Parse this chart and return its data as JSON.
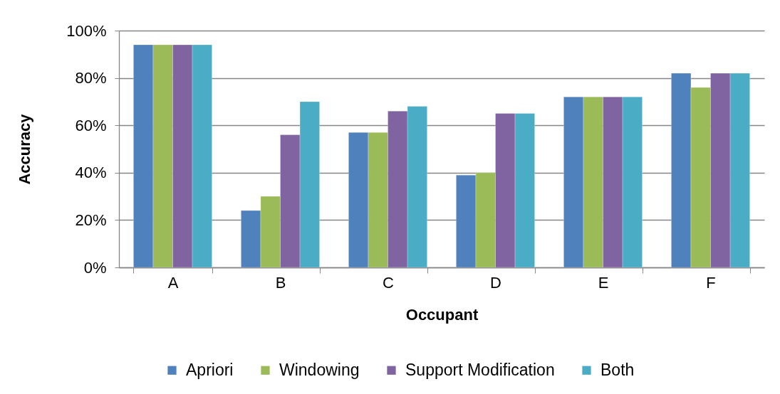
{
  "chart_data": {
    "type": "bar",
    "xlabel": "Occupant",
    "ylabel": "Accuracy",
    "categories": [
      "A",
      "B",
      "C",
      "D",
      "E",
      "F"
    ],
    "series": [
      {
        "name": "Apriori",
        "color": "#4f81bd",
        "values": [
          94,
          24,
          57,
          39,
          72,
          82
        ]
      },
      {
        "name": "Windowing",
        "color": "#9bbb59",
        "values": [
          94,
          30,
          57,
          40,
          72,
          76
        ]
      },
      {
        "name": "Support Modification",
        "color": "#8064a2",
        "values": [
          94,
          56,
          66,
          65,
          72,
          82
        ]
      },
      {
        "name": "Both",
        "color": "#4bacc6",
        "values": [
          94,
          70,
          68,
          65,
          72,
          82
        ]
      }
    ],
    "ylim": [
      0,
      100
    ],
    "yticks": [
      {
        "value": 0,
        "label": "0%"
      },
      {
        "value": 20,
        "label": "20%"
      },
      {
        "value": 40,
        "label": "40%"
      },
      {
        "value": 60,
        "label": "60%"
      },
      {
        "value": 80,
        "label": "80%"
      },
      {
        "value": 100,
        "label": "100%"
      }
    ],
    "grid": "y",
    "legend": "bottom"
  }
}
